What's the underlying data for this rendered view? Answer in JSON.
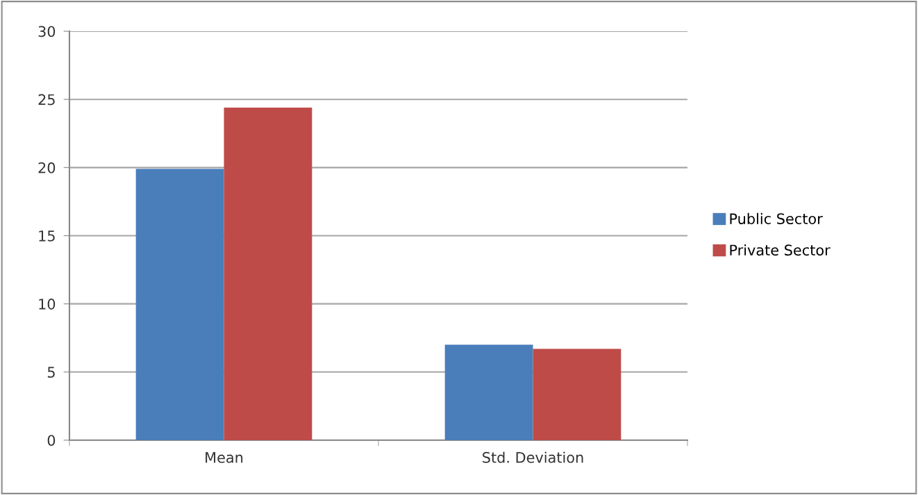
{
  "chart_data": {
    "type": "bar",
    "categories": [
      "Mean",
      "Std. Deviation"
    ],
    "series": [
      {
        "name": "Public Sector",
        "color": "#4a7ebb",
        "values": [
          19.9,
          7.0
        ]
      },
      {
        "name": "Private Sector",
        "color": "#be4b48",
        "values": [
          24.4,
          6.7
        ]
      }
    ],
    "ylim": [
      0,
      30
    ],
    "yticks": [
      0,
      5,
      10,
      15,
      20,
      25,
      30
    ],
    "grid": "y",
    "legend": "right"
  }
}
